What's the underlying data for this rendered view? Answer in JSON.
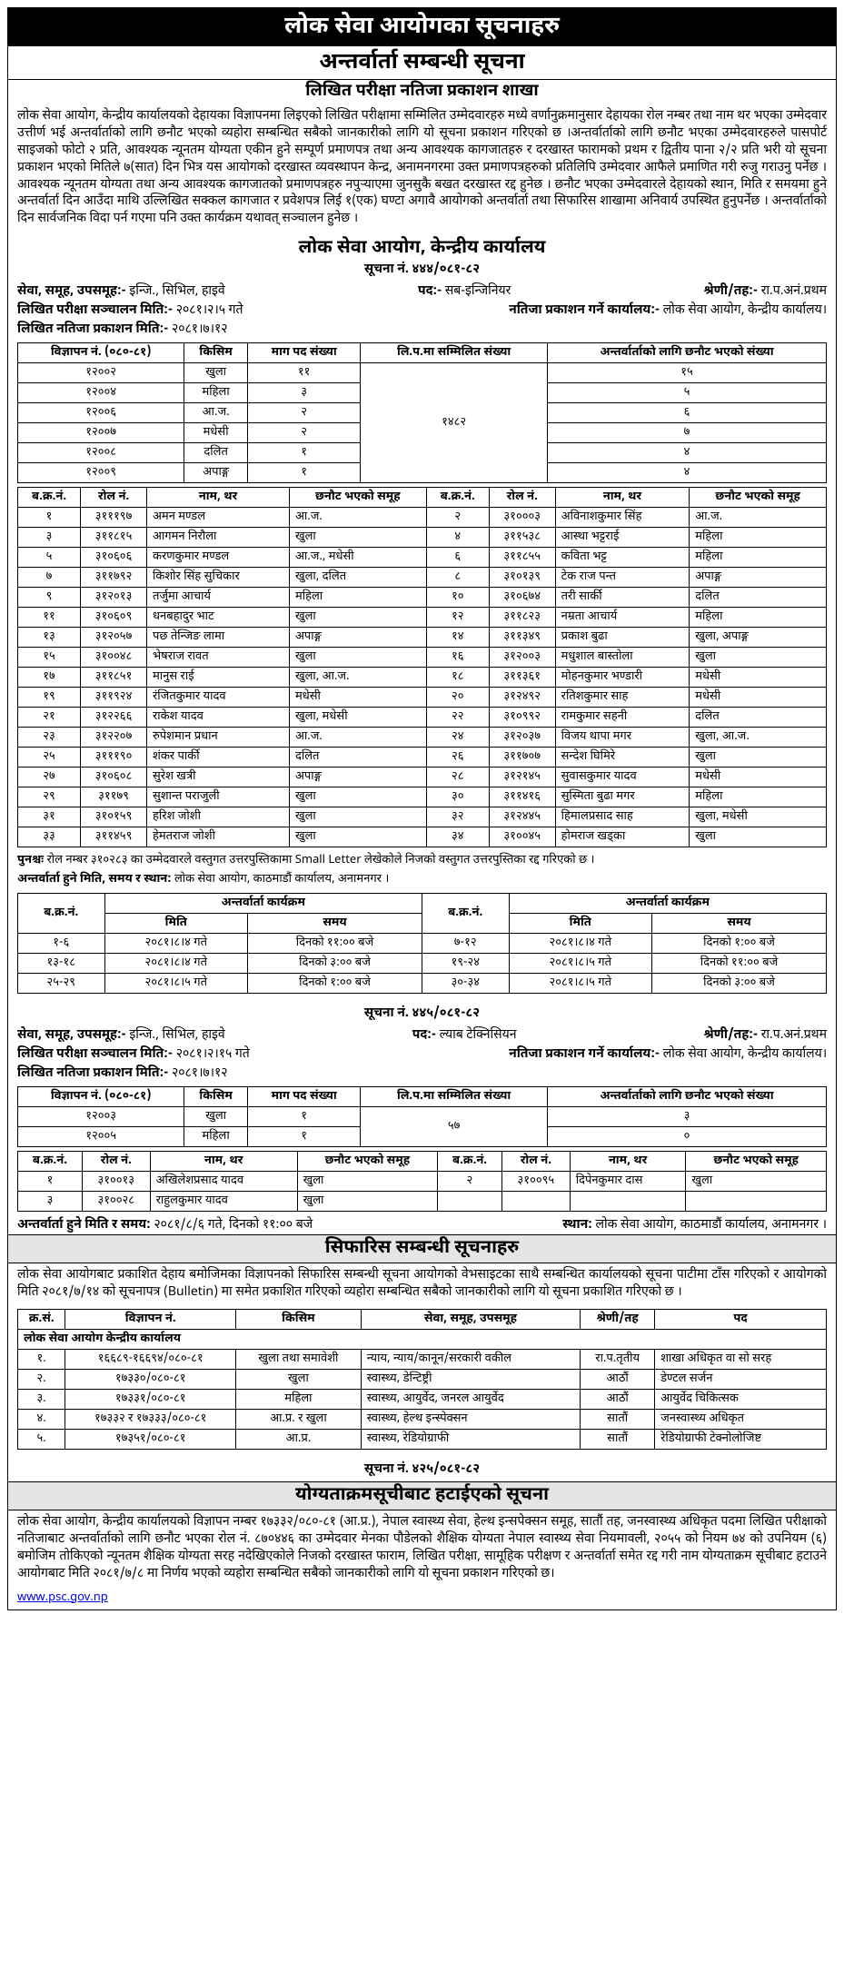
{
  "header": {
    "main": "लोक सेवा आयोगका सूचनाहरु",
    "sub1": "अन्तर्वार्ता सम्बन्धी सूचना",
    "sub2": "लिखित परीक्षा नतिजा प्रकाशन शाखा"
  },
  "intro_para": "लोक सेवा आयोग, केन्द्रीय कार्यालयको देहायका विज्ञापनमा लिइएको लिखित परीक्षामा सम्मिलित उम्मेदवारहरु मध्ये वर्णानुक्रमानुसार देहायका रोल नम्बर तथा नाम थर भएका उम्मेदवार उत्तीर्ण भई अन्तर्वार्ताको लागि छनौट भएको व्यहोरा सम्बन्धित सबैको जानकारीको लागि यो सूचना प्रकाशन गरिएको छ ।अन्तर्वार्ताको लागि छनौट भएका उम्मेदवारहरुले पासपोर्ट साइजको फोटो २ प्रति, आवश्यक न्यूनतम योग्यता एकीन हुने सम्पूर्ण प्रमाणपत्र तथा अन्य आवश्यक कागजातहरु र दरखास्त फारामको प्रथम र द्वितीय पाना २/२ प्रति भरी यो सूचना प्रकाशन भएको मितिले ७(सात) दिन भित्र यस आयोगको दरखास्त व्यवस्थापन केन्द्र, अनामनगरमा उक्त प्रमाणपत्रहरुको प्रतिलिपि उम्मेदवार आफैले प्रमाणित गरी रुजु गराउनु पर्नेछ । आवश्यक न्यूनतम योग्यता तथा अन्य आवश्यक कागजातको प्रमाणपत्रहरु नपुर्‍याएमा जुनसुकै बखत दरखास्त रद्द हुनेछ । छनौट भएका उम्मेदवारले देहायको स्थान, मिति र समयमा हुने अन्तर्वार्ता दिन आउँदा माथि उल्लिखित सक्कल कागजात र प्रवेशपत्र लिई १(एक) घण्टा अगावै आयोगको अन्तर्वार्ता तथा सिफारिस शाखामा अनिवार्य उपस्थित हुनुपर्नेछ । अन्तर्वार्ताको दिन सार्वजनिक विदा पर्न गएमा पनि उक्त कार्यक्रम यथावत् सञ्चालन हुनेछ ।",
  "office_title": "लोक सेवा आयोग, केन्द्रीय कार्यालय",
  "s1": {
    "notice_no": "सूचना नं. ४४४/०८१-८२",
    "meta": {
      "service_lbl": "सेवा, समूह, उपसमूह:-",
      "service_val": "इन्जि., सिभिल, हाइवे",
      "post_lbl": "पद:-",
      "post_val": "सब-इन्जिनियर",
      "level_lbl": "श्रेणी/तह:-",
      "level_val": "रा.प.अनं.प्रथम",
      "exam_date_lbl": "लिखित परीक्षा सञ्चालन मिति:-",
      "exam_date_val": "२०८१।२।५ गते",
      "result_office_lbl": "नतिजा प्रकाशन गर्ने कार्यालय:-",
      "result_office_val": "लोक सेवा आयोग, केन्द्रीय कार्यालय।",
      "result_date_lbl": "लिखित नतिजा प्रकाशन मिति:-",
      "result_date_val": "२०८१।७।१२"
    },
    "vac_head": [
      "विज्ञापन नं. (०८०-८१)",
      "किसिम",
      "माग पद संख्या",
      "लि.प.मा सम्मिलित संख्या",
      "अन्तर्वार्ताको लागि छनौट भएको संख्या"
    ],
    "vac_rows": [
      [
        "१२००२",
        "खुला",
        "११",
        "१५"
      ],
      [
        "१२००४",
        "महिला",
        "३",
        "५"
      ],
      [
        "१२००६",
        "आ.ज.",
        "२",
        "६"
      ],
      [
        "१२००७",
        "मधेसी",
        "२",
        "७"
      ],
      [
        "१२००८",
        "दलित",
        "१",
        "४"
      ],
      [
        "१२००९",
        "अपाङ्ग",
        "१",
        "४"
      ]
    ],
    "vac_merged": "१४८२",
    "cand_head": [
      "ब.क्र.नं.",
      "रोल नं.",
      "नाम, थर",
      "छनौट भएको समूह",
      "ब.क्र.नं.",
      "रोल नं.",
      "नाम, थर",
      "छनौट भएको समूह"
    ],
    "cand_rows": [
      [
        "१",
        "३१११९७",
        "अमन मण्डल",
        "आ.ज.",
        "२",
        "३१०००३",
        "अविनाशकुमार सिंह",
        "आ.ज."
      ],
      [
        "३",
        "३११८१५",
        "आगमन निरौला",
        "खुला",
        "४",
        "३११५३८",
        "आस्था भट्टराई",
        "महिला"
      ],
      [
        "५",
        "३१०६०६",
        "करणकुमार मण्डल",
        "आ.ज., मधेसी",
        "६",
        "३११८५५",
        "कविता भट्ट",
        "महिला"
      ],
      [
        "७",
        "३११७९२",
        "किशोर सिंह सुचिकार",
        "खुला, दलित",
        "८",
        "३१०१३९",
        "टेक राज पन्त",
        "अपाङ्ग"
      ],
      [
        "९",
        "३१२०१३",
        "तर्जुमा आचार्य",
        "महिला",
        "१०",
        "३१०६७४",
        "तरी सार्की",
        "दलित"
      ],
      [
        "११",
        "३१०६०९",
        "धनबहादुर भाट",
        "खुला",
        "१२",
        "३११८२३",
        "नम्रता आचार्य",
        "महिला"
      ],
      [
        "१३",
        "३१२०५७",
        "पछ तेन्जिङ लामा",
        "अपाङ्ग",
        "१४",
        "३११३४९",
        "प्रकाश बुढा",
        "खुला, अपाङ्ग"
      ],
      [
        "१५",
        "३१००४८",
        "भेषराज रावत",
        "खुला",
        "१६",
        "३१२००३",
        "मधुशाल बास्तोला",
        "खुला"
      ],
      [
        "१७",
        "३११८५१",
        "मानुस राई",
        "खुला, आ.ज.",
        "१८",
        "३११३६१",
        "मोहनकुमार भण्डारी",
        "मधेसी"
      ],
      [
        "१९",
        "३११९२४",
        "रंजितकुमार यादव",
        "मधेसी",
        "२०",
        "३१२४९२",
        "रतिशकुमार साह",
        "मधेसी"
      ],
      [
        "२१",
        "३१२२६६",
        "राकेश यादव",
        "खुला, मधेसी",
        "२२",
        "३१०९९२",
        "रामकुमार सहनी",
        "दलित"
      ],
      [
        "२३",
        "३१२२०७",
        "रुपेशमान प्रधान",
        "आ.ज.",
        "२४",
        "३१२०३७",
        "विजय थापा मगर",
        "खुला, आ.ज."
      ],
      [
        "२५",
        "३१११९०",
        "शंकर पार्की",
        "दलित",
        "२६",
        "३११७०७",
        "सन्देश घिमिरे",
        "खुला"
      ],
      [
        "२७",
        "३१०६०८",
        "सुरेश खत्री",
        "अपाङ्ग",
        "२८",
        "३१२१४५",
        "सुवासकुमार यादव",
        "मधेसी"
      ],
      [
        "२९",
        "३११७९",
        "सुशान्त पराजुली",
        "खुला",
        "३०",
        "३११४१६",
        "सुस्मिता बुढा मगर",
        "महिला"
      ],
      [
        "३१",
        "३१०१५९",
        "हरिश जोशी",
        "खुला",
        "३२",
        "३१२४४५",
        "हिमालप्रसाद साह",
        "खुला, मधेसी"
      ],
      [
        "३३",
        "३११४५९",
        "हेमतराज जोशी",
        "खुला",
        "३४",
        "३१००४५",
        "होमराज खड्का",
        "खुला"
      ]
    ],
    "note1_lbl": "पुनश्चः",
    "note1": "रोल नम्बर ३१०२८३ का उम्मेदवारले वस्तुगत उत्तरपुस्तिकामा Small Letter लेखेकोले निजको वस्तुगत उत्तरपुस्तिका रद्द गरिएको छ ।",
    "note2_lbl": "अन्तर्वार्ता हुने मिति, समय र स्थान:",
    "note2": "लोक सेवा आयोग, काठमाडौं कार्यालय, अनामनगर ।",
    "sched_head_top": [
      "ब.क्र.नं.",
      "अन्तर्वार्ता कार्यक्रम",
      "ब.क्र.नं.",
      "अन्तर्वार्ता कार्यक्रम"
    ],
    "sched_head_sub": [
      "मिति",
      "समय",
      "मिति",
      "समय"
    ],
    "sched_rows": [
      [
        "१-६",
        "२०८१।८।४ गते",
        "दिनको ११:०० बजे",
        "७-१२",
        "२०८१।८।४ गते",
        "दिनको १:०० बजे"
      ],
      [
        "१३-१८",
        "२०८१।८।४ गते",
        "दिनको ३:०० बजे",
        "१९-२४",
        "२०८१।८।५ गते",
        "दिनको ११:०० बजे"
      ],
      [
        "२५-२९",
        "२०८१।८।५ गते",
        "दिनको १:०० बजे",
        "३०-३४",
        "२०८१।८।५ गते",
        "दिनको ३:०० बजे"
      ]
    ]
  },
  "s2": {
    "notice_no": "सूचना नं. ४४५/०८१-८२",
    "meta": {
      "service_val": "इन्जि., सिभिल, हाइवे",
      "post_val": "ल्याब टेक्निसियन",
      "level_val": "रा.प.अनं.प्रथम",
      "exam_date_val": "२०८१।२।१५ गते",
      "result_office_val": "लोक सेवा आयोग, केन्द्रीय कार्यालय।",
      "result_date_val": "२०८१।७।१२"
    },
    "vac_rows": [
      [
        "१२००३",
        "खुला",
        "१",
        "३"
      ],
      [
        "१२००५",
        "महिला",
        "१",
        "०"
      ]
    ],
    "vac_merged": "५७",
    "cand_rows": [
      [
        "१",
        "३१००१३",
        "अखिलेशप्रसाद यादव",
        "खुला",
        "२",
        "३१००९५",
        "दिपेनकुमार दास",
        "खुला"
      ],
      [
        "३",
        "३१००२८",
        "राहुलकुमार यादव",
        "खुला",
        "",
        "",
        "",
        ""
      ]
    ],
    "note_lbl": "अन्तर्वार्ता हुने मिति र समय:",
    "note_val": "२०८१/८/६ गते, दिनको ११:०० बजे",
    "place_lbl": "स्थान:",
    "place_val": "लोक सेवा आयोग, काठमाडौं कार्यालय, अनामनगर ।"
  },
  "rec": {
    "title": "सिफारिस सम्बन्धी सूचनाहरु",
    "para": "लोक सेवा आयोगबाट प्रकाशित देहाय बमोजिमका विज्ञापनको सिफारिस सम्बन्धी सूचना आयोगको वेभसाइटका साथै सम्बन्धित कार्यालयको सूचना पाटीमा टाँस गरिएको र आयोगको मिति २०८१/७/१४ को सूचनापत्र (Bulletin) मा समेत प्रकाशित गरिएको व्यहोरा सम्बन्धित सबैको जानकारीको लागि यो सूचना प्रकाशित गरिएको छ ।",
    "head": [
      "क्र.सं.",
      "विज्ञापन नं.",
      "किसिम",
      "सेवा, समूह, उपसमूह",
      "श्रेणी/तह",
      "पद"
    ],
    "office_row": "लोक सेवा आयोग केन्द्रीय कार्यालय",
    "rows": [
      [
        "१.",
        "१६६८९-१६६९४/०८०-८१",
        "खुला तथा समावेशी",
        "न्याय, न्याय/कानून/सरकारी वकील",
        "रा.प.तृतीय",
        "शाखा अधिकृत वा सो सरह"
      ],
      [
        "२.",
        "१७३३०/०८०-८१",
        "खुला",
        "स्वास्थ्य, डेन्टिष्ट्री",
        "आठौं",
        "डेण्टल सर्जन"
      ],
      [
        "३.",
        "१७३३१/०८०-८१",
        "महिला",
        "स्वास्थ्य, आयुर्वेद, जनरल आयुर्वेद",
        "आठौं",
        "आयुर्वेद चिकित्सक"
      ],
      [
        "४.",
        "१७३३२ र १७३३३/०८०-८१",
        "आ.प्र. र खुला",
        "स्वास्थ्य, हेल्थ इन्स्पेक्सन",
        "सातौं",
        "जनस्वास्थ्य अधिकृत"
      ],
      [
        "५.",
        "१७३५१/०८०-८१",
        "आ.प्र.",
        "स्वास्थ्य, रेडियोग्राफी",
        "सातौं",
        "रेडियोग्राफी टेक्नोलोजिष्ट"
      ]
    ]
  },
  "rem": {
    "notice_no": "सूचना नं. ४२५/०८१-८२",
    "title": "योग्यताक्रमसूचीबाट हटाईएको सूचना",
    "para": "लोक सेवा आयोग, केन्द्रीय कार्यालयको विज्ञापन नम्बर १७३३२/०८०-८१ (आ.प्र.), नेपाल स्वास्थ्य सेवा, हेल्थ इन्सपेक्सन समूह, सातौं तह, जनस्वास्थ्य अधिकृत पदमा लिखित परीक्षाको नतिजाबाट अन्तर्वार्ताको लागि छनौट भएका रोल नं. ८७०४४६ का उम्मेदवार मेनका पौडेलको शैक्षिक योग्यता नेपाल स्वास्थ्य सेवा नियमावली, २०५५ को नियम ७४ को उपनियम (६) बमोजिम तोकिएको न्यूनतम शैक्षिक योग्यता सरह नदेखिएकोले निजको दरखास्त फाराम, लिखित परीक्षा, सामूहिक परीक्षण र अन्तर्वार्ता समेत रद्द गरी नाम योग्यताक्रम सूचीबाट हटाउने आयोगबाट मिति २०८१/७/८ मा निर्णय भएको व्यहोरा सम्बन्धित सबैको जानकारीको लागि यो सूचना प्रकाशन गरिएको छ।"
  },
  "link": "www.psc.gov.np"
}
